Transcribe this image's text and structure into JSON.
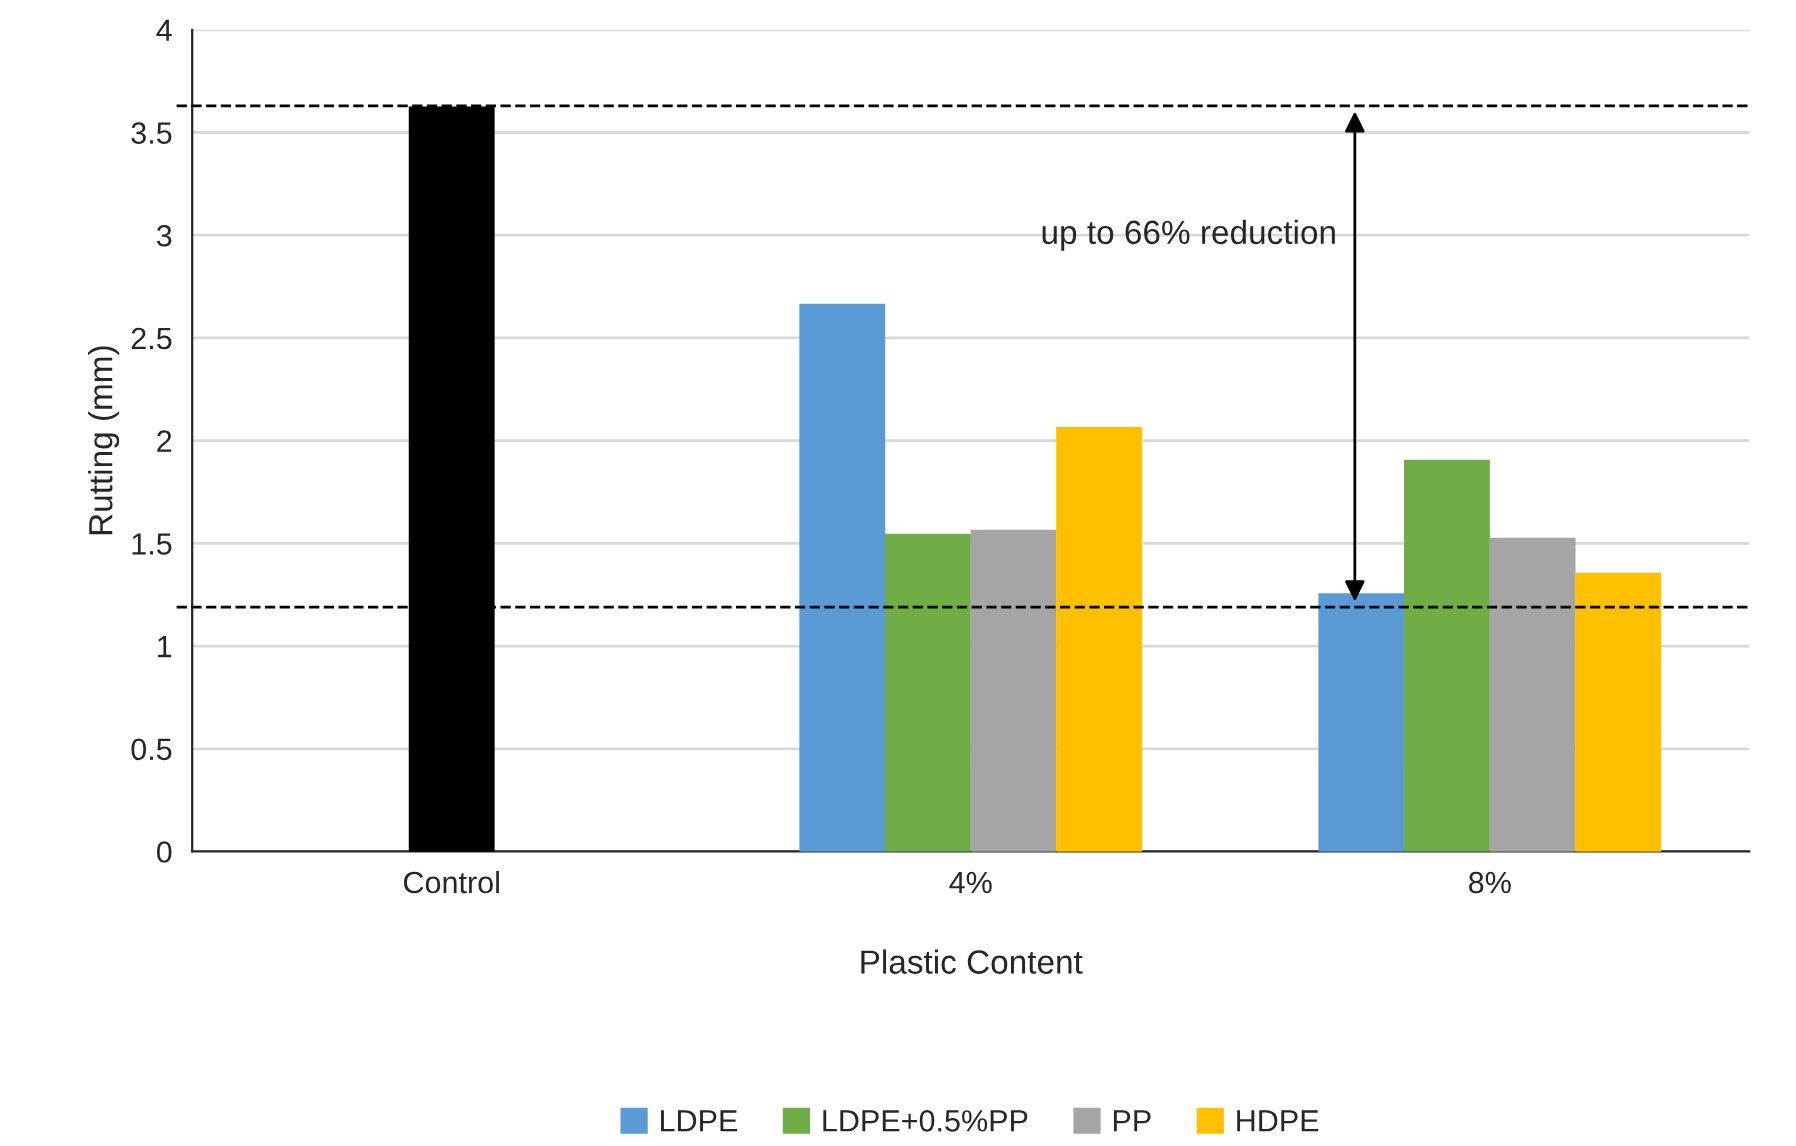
{
  "chart_data": {
    "type": "bar",
    "xlabel": "Plastic Content",
    "ylabel": "Rutting (mm)",
    "categories": [
      "Control",
      "4%",
      "8%"
    ],
    "series": [
      {
        "color": "#000000",
        "values": [
          3.62,
          null,
          null
        ]
      },
      {
        "name": "LDPE",
        "color": "#5b9bd5",
        "values": [
          null,
          2.66,
          1.25
        ]
      },
      {
        "name": "LDPE+0.5%PP",
        "color": "#70ad47",
        "values": [
          null,
          1.54,
          1.9
        ]
      },
      {
        "name": "PP",
        "color": "#a5a5a5",
        "values": [
          null,
          1.56,
          1.52
        ]
      },
      {
        "name": "HDPE",
        "color": "#ffc000",
        "values": [
          null,
          2.06,
          1.35
        ]
      }
    ],
    "ylim": [
      0,
      4
    ],
    "yticks": [
      0,
      0.5,
      1,
      1.5,
      2,
      2.5,
      3,
      3.5,
      4
    ],
    "grid": "y",
    "legend": "bottom",
    "ref_lines": [
      {
        "axis": "y",
        "value": 3.63,
        "line_style": "dashed",
        "color": "#000000"
      },
      {
        "axis": "y",
        "value": 1.19,
        "line_style": "dashed",
        "color": "#000000"
      }
    ],
    "annotations": [
      "up to 66% reduction"
    ]
  }
}
